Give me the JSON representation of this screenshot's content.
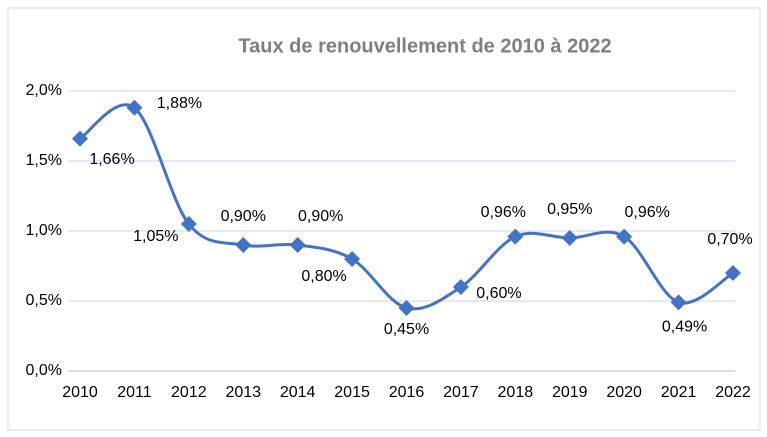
{
  "chart_data": {
    "type": "line",
    "title": "Taux de renouvellement de 2010 à 2022",
    "categories": [
      "2010",
      "2011",
      "2012",
      "2013",
      "2014",
      "2015",
      "2016",
      "2017",
      "2018",
      "2019",
      "2020",
      "2021",
      "2022"
    ],
    "series": [
      {
        "name": "Taux de renouvellement",
        "color": "#4472c4",
        "values": [
          1.66,
          1.88,
          1.05,
          0.9,
          0.9,
          0.8,
          0.45,
          0.6,
          0.96,
          0.95,
          0.96,
          0.49,
          0.7
        ],
        "value_labels": [
          "1,66%",
          "1,88%",
          "1,05%",
          "0,90%",
          "0,90%",
          "0,80%",
          "0,45%",
          "0,60%",
          "0,96%",
          "0,95%",
          "0,96%",
          "0,49%",
          "0,70%"
        ]
      }
    ],
    "ylim": [
      0,
      2
    ],
    "yticks": [
      {
        "value": 0,
        "label": "0,0%"
      },
      {
        "value": 0.5,
        "label": "0,5%"
      },
      {
        "value": 1,
        "label": "1,0%"
      },
      {
        "value": 1.5,
        "label": "1,5%"
      },
      {
        "value": 2,
        "label": "2,0%"
      }
    ],
    "grid": true
  }
}
